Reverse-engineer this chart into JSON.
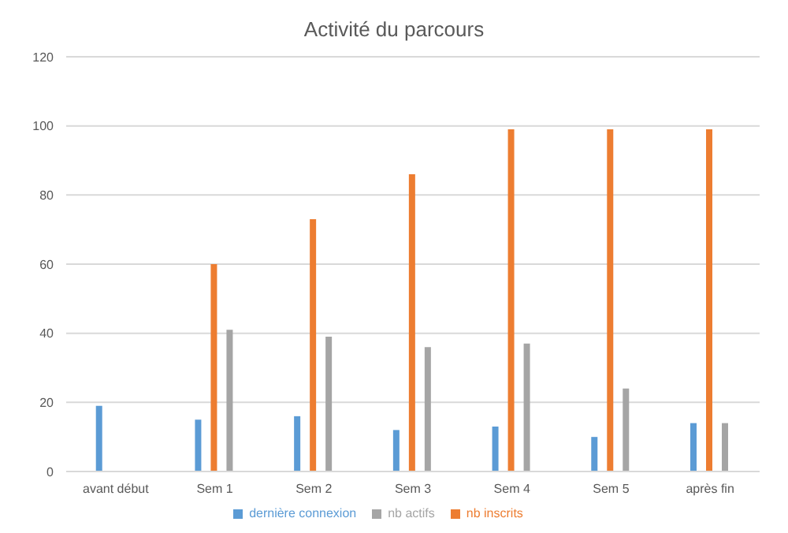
{
  "chart_data": {
    "type": "bar",
    "title": "Activité du parcours",
    "categories": [
      "avant début",
      "Sem 1",
      "Sem 2",
      "Sem 3",
      "Sem 4",
      "Sem 5",
      "après fin"
    ],
    "series": [
      {
        "name": "dernière connexion",
        "color": "#5b9bd5",
        "values": [
          19,
          15,
          16,
          12,
          13,
          10,
          14
        ]
      },
      {
        "name": "nb inscrits",
        "color": "#ed7d31",
        "values": [
          null,
          60,
          73,
          86,
          99,
          99,
          99
        ]
      },
      {
        "name": "nb actifs",
        "color": "#a5a5a5",
        "values": [
          null,
          41,
          39,
          36,
          37,
          24,
          14
        ]
      }
    ],
    "ylim": [
      0,
      120
    ],
    "yticks": [
      0,
      20,
      40,
      60,
      80,
      100,
      120
    ],
    "grid": "y",
    "legend": "bottom"
  }
}
